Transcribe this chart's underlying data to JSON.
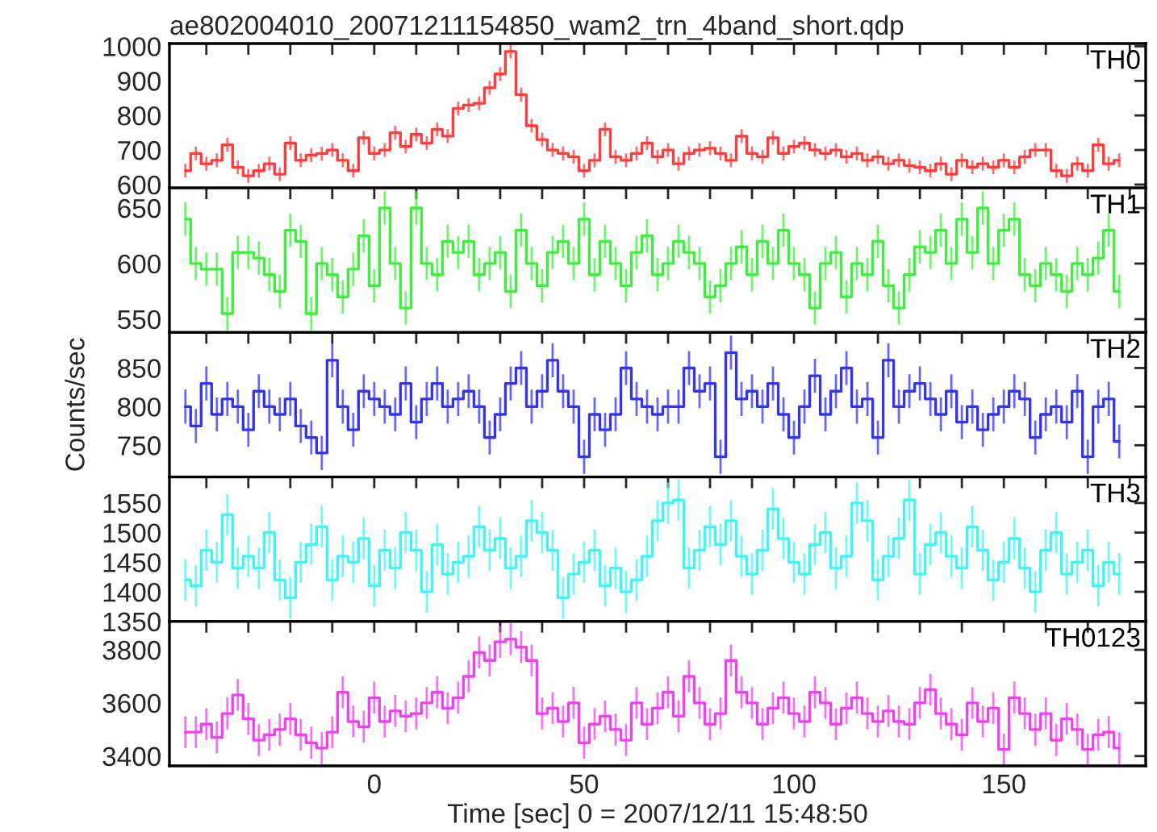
{
  "chart_data": [
    {
      "type": "step",
      "title": "ae802004010_20071211154850_wam2_trn_4band_short.qdp",
      "tick_labels": "y",
      "marker": "none",
      "xlim": [
        -48.8,
        183.8
      ],
      "ylim": [
        590,
        1008
      ],
      "yticks": [
        600,
        700,
        800,
        900,
        1000
      ],
      "xticks": [
        {
          "value": -40,
          "label": null
        },
        {
          "value": -30,
          "label": null
        },
        {
          "value": -20,
          "label": null
        },
        {
          "value": -10,
          "label": null
        },
        {
          "value": 0,
          "label": null
        },
        {
          "value": 10,
          "label": null
        },
        {
          "value": 20,
          "label": null
        },
        {
          "value": 30,
          "label": null
        },
        {
          "value": 40,
          "label": null
        },
        {
          "value": 50,
          "label": null
        },
        {
          "value": 60,
          "label": null
        },
        {
          "value": 70,
          "label": null
        },
        {
          "value": 80,
          "label": null
        },
        {
          "value": 90,
          "label": null
        },
        {
          "value": 100,
          "label": null
        },
        {
          "value": 110,
          "label": null
        },
        {
          "value": 120,
          "label": null
        },
        {
          "value": 130,
          "label": null
        },
        {
          "value": 140,
          "label": null
        },
        {
          "value": 150,
          "label": null
        },
        {
          "value": 160,
          "label": null
        },
        {
          "value": 170,
          "label": null
        },
        {
          "value": 180,
          "label": null
        }
      ],
      "x": [
        -45,
        -42.5,
        -40,
        -37.5,
        -35,
        -32.5,
        -30,
        -27.5,
        -25,
        -22.5,
        -20,
        -17.5,
        -15,
        -12.5,
        -10,
        -7.5,
        -5,
        -2.5,
        0,
        2.5,
        5,
        7.5,
        10,
        12.5,
        15,
        17.5,
        20,
        22.5,
        25,
        27.5,
        30,
        32.5,
        35,
        37.5,
        40,
        42.5,
        45,
        47.5,
        50,
        52.5,
        55,
        57.5,
        60,
        62.5,
        65,
        67.5,
        70,
        72.5,
        75,
        77.5,
        80,
        82.5,
        85,
        87.5,
        90,
        92.5,
        95,
        97.5,
        100,
        102.5,
        105,
        107.5,
        110,
        112.5,
        115,
        117.5,
        120,
        122.5,
        125,
        127.5,
        130,
        132.5,
        135,
        137.5,
        140,
        142.5,
        145,
        147.5,
        150,
        152.5,
        155,
        157.5,
        160,
        162.5,
        165,
        167.5,
        170,
        172.5,
        175,
        177.5
      ],
      "series": [
        {
          "name": "TH0",
          "color": "#ff3b3b",
          "values": [
            640,
            690,
            660,
            670,
            715,
            650,
            625,
            640,
            660,
            630,
            720,
            670,
            685,
            690,
            700,
            670,
            640,
            735,
            690,
            700,
            750,
            710,
            745,
            720,
            760,
            740,
            820,
            830,
            835,
            880,
            920,
            985,
            860,
            770,
            730,
            700,
            690,
            680,
            640,
            670,
            760,
            680,
            670,
            690,
            720,
            680,
            700,
            660,
            690,
            700,
            705,
            690,
            670,
            740,
            690,
            680,
            735,
            690,
            710,
            720,
            700,
            690,
            700,
            680,
            690,
            670,
            680,
            660,
            670,
            655,
            650,
            640,
            660,
            630,
            670,
            650,
            660,
            650,
            670,
            650,
            680,
            700,
            700,
            640,
            625,
            660,
            640,
            715,
            660,
            670
          ],
          "errors": [
            20,
            20,
            20,
            20,
            20,
            20,
            20,
            20,
            20,
            20,
            20,
            20,
            20,
            20,
            20,
            20,
            20,
            20,
            20,
            20,
            20,
            20,
            20,
            20,
            20,
            20,
            20,
            20,
            20,
            20,
            20,
            20,
            20,
            20,
            20,
            20,
            20,
            20,
            20,
            20,
            20,
            20,
            20,
            20,
            20,
            20,
            20,
            20,
            20,
            20,
            20,
            20,
            20,
            20,
            20,
            20,
            20,
            20,
            20,
            20,
            20,
            20,
            20,
            20,
            20,
            20,
            20,
            20,
            20,
            20,
            20,
            20,
            20,
            20,
            20,
            20,
            20,
            20,
            20,
            20,
            20,
            20,
            20,
            20,
            20,
            20,
            20,
            20,
            20,
            20
          ]
        }
      ]
    },
    {
      "type": "step",
      "tick_labels": "y",
      "marker": "none",
      "xlim": [
        -48.8,
        183.8
      ],
      "ylim": [
        538,
        668
      ],
      "yticks": [
        550,
        600,
        650
      ],
      "xticks": [
        {
          "value": -40,
          "label": null
        },
        {
          "value": -30,
          "label": null
        },
        {
          "value": -20,
          "label": null
        },
        {
          "value": -10,
          "label": null
        },
        {
          "value": 0,
          "label": null
        },
        {
          "value": 10,
          "label": null
        },
        {
          "value": 20,
          "label": null
        },
        {
          "value": 30,
          "label": null
        },
        {
          "value": 40,
          "label": null
        },
        {
          "value": 50,
          "label": null
        },
        {
          "value": 60,
          "label": null
        },
        {
          "value": 70,
          "label": null
        },
        {
          "value": 80,
          "label": null
        },
        {
          "value": 90,
          "label": null
        },
        {
          "value": 100,
          "label": null
        },
        {
          "value": 110,
          "label": null
        },
        {
          "value": 120,
          "label": null
        },
        {
          "value": 130,
          "label": null
        },
        {
          "value": 140,
          "label": null
        },
        {
          "value": 150,
          "label": null
        },
        {
          "value": 160,
          "label": null
        },
        {
          "value": 170,
          "label": null
        },
        {
          "value": 180,
          "label": null
        }
      ],
      "x": [
        -45,
        -42.5,
        -40,
        -37.5,
        -35,
        -32.5,
        -30,
        -27.5,
        -25,
        -22.5,
        -20,
        -17.5,
        -15,
        -12.5,
        -10,
        -7.5,
        -5,
        -2.5,
        0,
        2.5,
        5,
        7.5,
        10,
        12.5,
        15,
        17.5,
        20,
        22.5,
        25,
        27.5,
        30,
        32.5,
        35,
        37.5,
        40,
        42.5,
        45,
        47.5,
        50,
        52.5,
        55,
        57.5,
        60,
        62.5,
        65,
        67.5,
        70,
        72.5,
        75,
        77.5,
        80,
        82.5,
        85,
        87.5,
        90,
        92.5,
        95,
        97.5,
        100,
        102.5,
        105,
        107.5,
        110,
        112.5,
        115,
        117.5,
        120,
        122.5,
        125,
        127.5,
        130,
        132.5,
        135,
        137.5,
        140,
        142.5,
        145,
        147.5,
        150,
        152.5,
        155,
        157.5,
        160,
        162.5,
        165,
        167.5,
        170,
        172.5,
        175,
        177.5
      ],
      "series": [
        {
          "name": "TH1",
          "color": "#3cf03c",
          "values": [
            640,
            600,
            595,
            595,
            555,
            610,
            610,
            605,
            590,
            575,
            630,
            620,
            555,
            600,
            590,
            570,
            595,
            625,
            580,
            650,
            600,
            560,
            650,
            600,
            590,
            620,
            610,
            620,
            590,
            600,
            610,
            575,
            630,
            600,
            580,
            610,
            620,
            600,
            640,
            590,
            620,
            600,
            580,
            610,
            625,
            590,
            600,
            620,
            610,
            600,
            570,
            580,
            600,
            615,
            590,
            620,
            600,
            630,
            600,
            590,
            560,
            600,
            610,
            570,
            600,
            590,
            620,
            580,
            560,
            590,
            615,
            610,
            630,
            600,
            640,
            610,
            650,
            600,
            630,
            640,
            590,
            580,
            600,
            590,
            575,
            600,
            590,
            605,
            630,
            575
          ],
          "errors": [
            15,
            15,
            15,
            15,
            15,
            15,
            15,
            15,
            15,
            15,
            15,
            15,
            15,
            15,
            15,
            15,
            15,
            15,
            15,
            15,
            15,
            15,
            15,
            15,
            15,
            15,
            15,
            15,
            15,
            15,
            15,
            15,
            15,
            15,
            15,
            15,
            15,
            15,
            15,
            15,
            15,
            15,
            15,
            15,
            15,
            15,
            15,
            15,
            15,
            15,
            15,
            15,
            15,
            15,
            15,
            15,
            15,
            15,
            15,
            15,
            15,
            15,
            15,
            15,
            15,
            15,
            15,
            15,
            15,
            15,
            15,
            15,
            15,
            15,
            15,
            15,
            15,
            15,
            15,
            15,
            15,
            15,
            15,
            15,
            15,
            15,
            15,
            15,
            15,
            15
          ]
        }
      ]
    },
    {
      "type": "step",
      "tick_labels": "y",
      "marker": "none",
      "ylabel": "Counts/sec",
      "xlim": [
        -48.8,
        183.8
      ],
      "ylim": [
        709,
        896
      ],
      "yticks": [
        750,
        800,
        850
      ],
      "xticks": [
        {
          "value": -40,
          "label": null
        },
        {
          "value": -30,
          "label": null
        },
        {
          "value": -20,
          "label": null
        },
        {
          "value": -10,
          "label": null
        },
        {
          "value": 0,
          "label": null
        },
        {
          "value": 10,
          "label": null
        },
        {
          "value": 20,
          "label": null
        },
        {
          "value": 30,
          "label": null
        },
        {
          "value": 40,
          "label": null
        },
        {
          "value": 50,
          "label": null
        },
        {
          "value": 60,
          "label": null
        },
        {
          "value": 70,
          "label": null
        },
        {
          "value": 80,
          "label": null
        },
        {
          "value": 90,
          "label": null
        },
        {
          "value": 100,
          "label": null
        },
        {
          "value": 110,
          "label": null
        },
        {
          "value": 120,
          "label": null
        },
        {
          "value": 130,
          "label": null
        },
        {
          "value": 140,
          "label": null
        },
        {
          "value": 150,
          "label": null
        },
        {
          "value": 160,
          "label": null
        },
        {
          "value": 170,
          "label": null
        },
        {
          "value": 180,
          "label": null
        }
      ],
      "x": [
        -45,
        -42.5,
        -40,
        -37.5,
        -35,
        -32.5,
        -30,
        -27.5,
        -25,
        -22.5,
        -20,
        -17.5,
        -15,
        -12.5,
        -10,
        -7.5,
        -5,
        -2.5,
        0,
        2.5,
        5,
        7.5,
        10,
        12.5,
        15,
        17.5,
        20,
        22.5,
        25,
        27.5,
        30,
        32.5,
        35,
        37.5,
        40,
        42.5,
        45,
        47.5,
        50,
        52.5,
        55,
        57.5,
        60,
        62.5,
        65,
        67.5,
        70,
        72.5,
        75,
        77.5,
        80,
        82.5,
        85,
        87.5,
        90,
        92.5,
        95,
        97.5,
        100,
        102.5,
        105,
        107.5,
        110,
        112.5,
        115,
        117.5,
        120,
        122.5,
        125,
        127.5,
        130,
        132.5,
        135,
        137.5,
        140,
        142.5,
        145,
        147.5,
        150,
        152.5,
        155,
        157.5,
        160,
        162.5,
        165,
        167.5,
        170,
        172.5,
        175,
        177.5
      ],
      "series": [
        {
          "name": "TH2",
          "color": "#3434f0",
          "values": [
            800,
            775,
            830,
            790,
            810,
            800,
            770,
            820,
            800,
            790,
            810,
            775,
            760,
            740,
            860,
            800,
            770,
            820,
            810,
            800,
            790,
            830,
            780,
            810,
            830,
            800,
            810,
            820,
            800,
            760,
            790,
            830,
            850,
            800,
            820,
            860,
            820,
            800,
            735,
            790,
            770,
            790,
            850,
            810,
            800,
            790,
            800,
            800,
            850,
            820,
            830,
            735,
            870,
            810,
            820,
            800,
            830,
            790,
            760,
            800,
            840,
            790,
            820,
            850,
            800,
            810,
            760,
            860,
            800,
            820,
            830,
            810,
            790,
            820,
            780,
            800,
            770,
            790,
            800,
            820,
            810,
            760,
            790,
            800,
            780,
            820,
            735,
            800,
            810,
            755
          ],
          "errors": [
            22,
            22,
            22,
            22,
            22,
            22,
            22,
            22,
            22,
            22,
            22,
            22,
            22,
            22,
            22,
            22,
            22,
            22,
            22,
            22,
            22,
            22,
            22,
            22,
            22,
            22,
            22,
            22,
            22,
            22,
            22,
            22,
            22,
            22,
            22,
            22,
            22,
            22,
            22,
            22,
            22,
            22,
            22,
            22,
            22,
            22,
            22,
            22,
            22,
            22,
            22,
            22,
            22,
            22,
            22,
            22,
            22,
            22,
            22,
            22,
            22,
            22,
            22,
            22,
            22,
            22,
            22,
            22,
            22,
            22,
            22,
            22,
            22,
            22,
            22,
            22,
            22,
            22,
            22,
            22,
            22,
            22,
            22,
            22,
            22,
            22,
            22,
            22,
            22,
            22
          ]
        }
      ]
    },
    {
      "type": "step",
      "tick_labels": "y",
      "marker": "none",
      "xlim": [
        -48.8,
        183.8
      ],
      "ylim": [
        1350,
        1594
      ],
      "yticks": [
        1350,
        1400,
        1450,
        1500,
        1550
      ],
      "xticks": [
        {
          "value": -40,
          "label": null
        },
        {
          "value": -30,
          "label": null
        },
        {
          "value": -20,
          "label": null
        },
        {
          "value": -10,
          "label": null
        },
        {
          "value": 0,
          "label": null
        },
        {
          "value": 10,
          "label": null
        },
        {
          "value": 20,
          "label": null
        },
        {
          "value": 30,
          "label": null
        },
        {
          "value": 40,
          "label": null
        },
        {
          "value": 50,
          "label": null
        },
        {
          "value": 60,
          "label": null
        },
        {
          "value": 70,
          "label": null
        },
        {
          "value": 80,
          "label": null
        },
        {
          "value": 90,
          "label": null
        },
        {
          "value": 100,
          "label": null
        },
        {
          "value": 110,
          "label": null
        },
        {
          "value": 120,
          "label": null
        },
        {
          "value": 130,
          "label": null
        },
        {
          "value": 140,
          "label": null
        },
        {
          "value": 150,
          "label": null
        },
        {
          "value": 160,
          "label": null
        },
        {
          "value": 170,
          "label": null
        },
        {
          "value": 180,
          "label": null
        }
      ],
      "x": [
        -45,
        -42.5,
        -40,
        -37.5,
        -35,
        -32.5,
        -30,
        -27.5,
        -25,
        -22.5,
        -20,
        -17.5,
        -15,
        -12.5,
        -10,
        -7.5,
        -5,
        -2.5,
        0,
        2.5,
        5,
        7.5,
        10,
        12.5,
        15,
        17.5,
        20,
        22.5,
        25,
        27.5,
        30,
        32.5,
        35,
        37.5,
        40,
        42.5,
        45,
        47.5,
        50,
        52.5,
        55,
        57.5,
        60,
        62.5,
        65,
        67.5,
        70,
        72.5,
        75,
        77.5,
        80,
        82.5,
        85,
        87.5,
        90,
        92.5,
        95,
        97.5,
        100,
        102.5,
        105,
        107.5,
        110,
        112.5,
        115,
        117.5,
        120,
        122.5,
        125,
        127.5,
        130,
        132.5,
        135,
        137.5,
        140,
        142.5,
        145,
        147.5,
        150,
        152.5,
        155,
        157.5,
        160,
        162.5,
        165,
        167.5,
        170,
        172.5,
        175,
        177.5
      ],
      "series": [
        {
          "name": "TH3",
          "color": "#40f5f5",
          "values": [
            1420,
            1410,
            1470,
            1450,
            1530,
            1440,
            1460,
            1440,
            1500,
            1420,
            1390,
            1450,
            1480,
            1510,
            1420,
            1460,
            1450,
            1490,
            1410,
            1470,
            1440,
            1500,
            1470,
            1400,
            1480,
            1430,
            1450,
            1460,
            1510,
            1470,
            1490,
            1440,
            1460,
            1520,
            1500,
            1470,
            1390,
            1430,
            1450,
            1470,
            1410,
            1440,
            1400,
            1420,
            1460,
            1520,
            1550,
            1555,
            1440,
            1470,
            1510,
            1480,
            1520,
            1460,
            1430,
            1470,
            1540,
            1490,
            1450,
            1430,
            1480,
            1500,
            1440,
            1460,
            1550,
            1520,
            1420,
            1460,
            1490,
            1555,
            1430,
            1480,
            1500,
            1460,
            1440,
            1510,
            1470,
            1420,
            1450,
            1490,
            1440,
            1400,
            1470,
            1500,
            1430,
            1450,
            1470,
            1410,
            1450,
            1430
          ],
          "errors": [
            35,
            35,
            35,
            35,
            35,
            35,
            35,
            35,
            35,
            35,
            35,
            35,
            35,
            35,
            35,
            35,
            35,
            35,
            35,
            35,
            35,
            35,
            35,
            35,
            35,
            35,
            35,
            35,
            35,
            35,
            35,
            35,
            35,
            35,
            35,
            35,
            35,
            35,
            35,
            35,
            35,
            35,
            35,
            35,
            35,
            35,
            35,
            35,
            35,
            35,
            35,
            35,
            35,
            35,
            35,
            35,
            35,
            35,
            35,
            35,
            35,
            35,
            35,
            35,
            35,
            35,
            35,
            35,
            35,
            35,
            35,
            35,
            35,
            35,
            35,
            35,
            35,
            35,
            35,
            35,
            35,
            35,
            35,
            35,
            35,
            35,
            35,
            35,
            35,
            35
          ]
        }
      ]
    },
    {
      "type": "step",
      "marker": "none",
      "xlabel": "Time [sec] 0 = 2007/12/11 15:48:50",
      "xlim": [
        -48.8,
        183.8
      ],
      "ylim": [
        3363,
        3907
      ],
      "yticks": [
        3400,
        3600,
        3800
      ],
      "xticks": [
        {
          "value": -40,
          "label": null
        },
        {
          "value": -30,
          "label": null
        },
        {
          "value": -20,
          "label": null
        },
        {
          "value": -10,
          "label": null
        },
        0,
        {
          "value": 10,
          "label": null
        },
        {
          "value": 20,
          "label": null
        },
        {
          "value": 30,
          "label": null
        },
        {
          "value": 40,
          "label": null
        },
        50,
        {
          "value": 60,
          "label": null
        },
        {
          "value": 70,
          "label": null
        },
        {
          "value": 80,
          "label": null
        },
        {
          "value": 90,
          "label": null
        },
        100,
        {
          "value": 110,
          "label": null
        },
        {
          "value": 120,
          "label": null
        },
        {
          "value": 130,
          "label": null
        },
        {
          "value": 140,
          "label": null
        },
        150,
        {
          "value": 160,
          "label": null
        },
        {
          "value": 170,
          "label": null
        },
        {
          "value": 180,
          "label": null
        }
      ],
      "x": [
        -45,
        -42.5,
        -40,
        -37.5,
        -35,
        -32.5,
        -30,
        -27.5,
        -25,
        -22.5,
        -20,
        -17.5,
        -15,
        -12.5,
        -10,
        -7.5,
        -5,
        -2.5,
        0,
        2.5,
        5,
        7.5,
        10,
        12.5,
        15,
        17.5,
        20,
        22.5,
        25,
        27.5,
        30,
        32.5,
        35,
        37.5,
        40,
        42.5,
        45,
        47.5,
        50,
        52.5,
        55,
        57.5,
        60,
        62.5,
        65,
        67.5,
        70,
        72.5,
        75,
        77.5,
        80,
        82.5,
        85,
        87.5,
        90,
        92.5,
        95,
        97.5,
        100,
        102.5,
        105,
        107.5,
        110,
        112.5,
        115,
        117.5,
        120,
        122.5,
        125,
        127.5,
        130,
        132.5,
        135,
        137.5,
        140,
        142.5,
        145,
        147.5,
        150,
        152.5,
        155,
        157.5,
        160,
        162.5,
        165,
        167.5,
        170,
        172.5,
        175,
        177.5
      ],
      "series": [
        {
          "name": "TH0123",
          "color": "#f040f0",
          "values": [
            3490,
            3490,
            3520,
            3470,
            3560,
            3630,
            3540,
            3460,
            3480,
            3500,
            3540,
            3480,
            3450,
            3430,
            3490,
            3640,
            3530,
            3510,
            3620,
            3530,
            3570,
            3550,
            3560,
            3600,
            3640,
            3580,
            3620,
            3700,
            3790,
            3760,
            3830,
            3840,
            3810,
            3760,
            3560,
            3580,
            3530,
            3600,
            3450,
            3520,
            3550,
            3500,
            3460,
            3600,
            3520,
            3580,
            3640,
            3550,
            3700,
            3600,
            3520,
            3560,
            3760,
            3640,
            3600,
            3520,
            3580,
            3620,
            3560,
            3530,
            3640,
            3600,
            3520,
            3580,
            3620,
            3560,
            3530,
            3570,
            3530,
            3520,
            3600,
            3650,
            3560,
            3520,
            3480,
            3600,
            3530,
            3580,
            3425,
            3620,
            3560,
            3500,
            3560,
            3460,
            3540,
            3500,
            3425,
            3480,
            3490,
            3430
          ],
          "errors": [
            60,
            60,
            60,
            60,
            60,
            60,
            60,
            60,
            60,
            60,
            60,
            60,
            60,
            60,
            60,
            60,
            60,
            60,
            60,
            60,
            60,
            60,
            60,
            60,
            60,
            60,
            60,
            60,
            60,
            60,
            60,
            60,
            60,
            60,
            60,
            60,
            60,
            60,
            60,
            60,
            60,
            60,
            60,
            60,
            60,
            60,
            60,
            60,
            60,
            60,
            60,
            60,
            60,
            60,
            60,
            60,
            60,
            60,
            60,
            60,
            60,
            60,
            60,
            60,
            60,
            60,
            60,
            60,
            60,
            60,
            60,
            60,
            60,
            60,
            60,
            60,
            60,
            60,
            60,
            60,
            60,
            60,
            60,
            60,
            60,
            60,
            60,
            60,
            60,
            60
          ]
        }
      ]
    }
  ]
}
